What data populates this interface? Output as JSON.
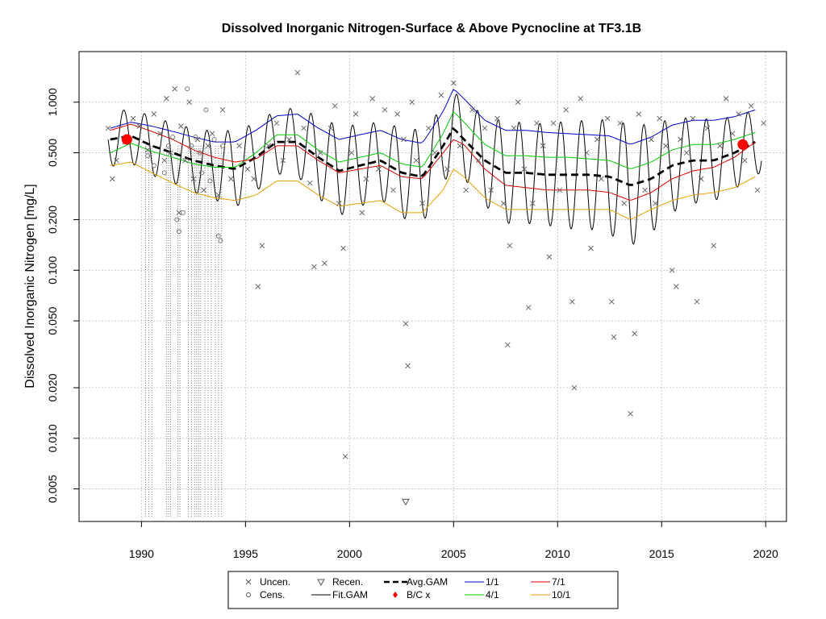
{
  "chart_data": {
    "type": "scatter",
    "title": "Dissolved Inorganic Nitrogen-Surface & Above Pycnocline at TF3.1B",
    "xlabel": "",
    "ylabel": "Dissolved Inorganic Nitrogen [mg/L]",
    "x_scale": "linear",
    "y_scale": "log",
    "xlim": [
      1987.0,
      2021.0
    ],
    "ylim": [
      0.0032,
      2.0
    ],
    "grid": true,
    "x_ticks": [
      {
        "value": 1990,
        "label": "1990"
      },
      {
        "value": 1995,
        "label": "1995"
      },
      {
        "value": 2000,
        "label": "2000"
      },
      {
        "value": 2005,
        "label": "2005"
      },
      {
        "value": 2010,
        "label": "2010"
      },
      {
        "value": 2015,
        "label": "2015"
      },
      {
        "value": 2020,
        "label": "2020"
      }
    ],
    "y_ticks": [
      {
        "value": 0.005,
        "label": "0.005"
      },
      {
        "value": 0.01,
        "label": "0.010"
      },
      {
        "value": 0.02,
        "label": "0.020"
      },
      {
        "value": 0.05,
        "label": "0.050"
      },
      {
        "value": 0.1,
        "label": "0.100"
      },
      {
        "value": 0.2,
        "label": "0.200"
      },
      {
        "value": 0.5,
        "label": "0.500"
      },
      {
        "value": 1.0,
        "label": "1.000"
      }
    ],
    "legend": [
      {
        "label": "Uncen.",
        "symbol": "x",
        "color": "#555555"
      },
      {
        "label": "Recen.",
        "symbol": "triangle-down",
        "color": "#555555"
      },
      {
        "label": "Avg.GAM",
        "symbol": "dashed-line",
        "color": "#000000"
      },
      {
        "label": "1/1",
        "symbol": "line",
        "color": "#0000cc"
      },
      {
        "label": "7/1",
        "symbol": "line",
        "color": "#dd0000"
      },
      {
        "label": "Cens.",
        "symbol": "circle",
        "color": "#555555"
      },
      {
        "label": "Fit.GAM",
        "symbol": "line",
        "color": "#000000"
      },
      {
        "label": "B/C x",
        "symbol": "diamond",
        "color": "#ff0000"
      },
      {
        "label": "4/1",
        "symbol": "line",
        "color": "#00cc00"
      },
      {
        "label": "10/1",
        "symbol": "line",
        "color": "#e69f00"
      }
    ],
    "series": [
      {
        "name": "Avg.GAM",
        "style": "dashed",
        "color": "#000000",
        "x": [
          1988.5,
          1989.5,
          1990.5,
          1991.5,
          1992.5,
          1993.5,
          1994.5,
          1995.5,
          1996.5,
          1997.5,
          1998.5,
          1999.5,
          2000.5,
          2001.5,
          2002.5,
          2003.5,
          2004.5,
          2005.0,
          2005.5,
          2006.5,
          2007.5,
          2008.5,
          2009.5,
          2010.5,
          2011.5,
          2012.5,
          2013.5,
          2014.5,
          2015.5,
          2016.5,
          2017.5,
          2018.5,
          2019.5
        ],
        "y": [
          0.6,
          0.63,
          0.55,
          0.5,
          0.45,
          0.42,
          0.4,
          0.47,
          0.58,
          0.58,
          0.47,
          0.39,
          0.42,
          0.45,
          0.38,
          0.36,
          0.55,
          0.7,
          0.6,
          0.45,
          0.38,
          0.38,
          0.37,
          0.37,
          0.37,
          0.36,
          0.32,
          0.35,
          0.42,
          0.45,
          0.45,
          0.5,
          0.58
        ]
      },
      {
        "name": "1/1",
        "style": "solid",
        "color": "#0000cc",
        "x": [
          1988.5,
          1989.5,
          1990.5,
          1991.5,
          1992.5,
          1993.5,
          1994.5,
          1995.5,
          1996.5,
          1997.5,
          1998.5,
          1999.5,
          2000.5,
          2001.5,
          2002.5,
          2003.5,
          2004.5,
          2005.0,
          2005.5,
          2006.5,
          2007.5,
          2008.5,
          2009.5,
          2010.5,
          2011.5,
          2012.5,
          2013.5,
          2014.5,
          2015.5,
          2016.5,
          2017.5,
          2018.5,
          2019.5
        ],
        "y": [
          0.7,
          0.76,
          0.72,
          0.67,
          0.62,
          0.58,
          0.58,
          0.68,
          0.83,
          0.85,
          0.7,
          0.6,
          0.64,
          0.68,
          0.6,
          0.57,
          0.88,
          1.2,
          1.05,
          0.78,
          0.68,
          0.68,
          0.66,
          0.65,
          0.64,
          0.63,
          0.56,
          0.62,
          0.73,
          0.78,
          0.78,
          0.82,
          0.9
        ]
      },
      {
        "name": "4/1",
        "style": "solid",
        "color": "#00cc00",
        "x": [
          1988.5,
          1989.5,
          1990.5,
          1991.5,
          1992.5,
          1993.5,
          1994.5,
          1995.5,
          1996.5,
          1997.5,
          1998.5,
          1999.5,
          2000.5,
          2001.5,
          2002.5,
          2003.5,
          2004.5,
          2005.0,
          2005.5,
          2006.5,
          2007.5,
          2008.5,
          2009.5,
          2010.5,
          2011.5,
          2012.5,
          2013.5,
          2014.5,
          2015.5,
          2016.5,
          2017.5,
          2018.5,
          2019.5
        ],
        "y": [
          0.5,
          0.57,
          0.51,
          0.47,
          0.43,
          0.41,
          0.41,
          0.5,
          0.64,
          0.64,
          0.52,
          0.44,
          0.47,
          0.5,
          0.43,
          0.41,
          0.65,
          0.88,
          0.76,
          0.56,
          0.48,
          0.48,
          0.47,
          0.47,
          0.46,
          0.45,
          0.4,
          0.44,
          0.52,
          0.56,
          0.56,
          0.6,
          0.66
        ]
      },
      {
        "name": "7/1",
        "style": "solid",
        "color": "#dd0000",
        "x": [
          1988.5,
          1989.5,
          1990.5,
          1991.5,
          1992.5,
          1993.5,
          1994.5,
          1995.5,
          1996.5,
          1997.5,
          1998.5,
          1999.5,
          2000.5,
          2001.5,
          2002.5,
          2003.5,
          2004.5,
          2005.0,
          2005.5,
          2006.5,
          2007.5,
          2008.5,
          2009.5,
          2010.5,
          2011.5,
          2012.5,
          2013.5,
          2014.5,
          2015.5,
          2016.5,
          2017.5,
          2018.5,
          2019.5
        ],
        "y": [
          0.68,
          0.74,
          0.67,
          0.6,
          0.52,
          0.47,
          0.44,
          0.46,
          0.55,
          0.55,
          0.45,
          0.38,
          0.4,
          0.42,
          0.36,
          0.35,
          0.5,
          0.6,
          0.56,
          0.4,
          0.32,
          0.31,
          0.3,
          0.3,
          0.3,
          0.29,
          0.26,
          0.29,
          0.35,
          0.39,
          0.41,
          0.47,
          0.58
        ]
      },
      {
        "name": "10/1",
        "style": "solid",
        "color": "#e69f00",
        "x": [
          1988.5,
          1989.5,
          1990.5,
          1991.5,
          1992.5,
          1993.5,
          1994.5,
          1995.5,
          1996.5,
          1997.5,
          1998.5,
          1999.5,
          2000.5,
          2001.5,
          2002.5,
          2003.5,
          2004.5,
          2005.0,
          2005.5,
          2006.5,
          2007.5,
          2008.5,
          2009.5,
          2010.5,
          2011.5,
          2012.5,
          2013.5,
          2014.5,
          2015.5,
          2016.5,
          2017.5,
          2018.5,
          2019.5
        ],
        "y": [
          0.42,
          0.44,
          0.38,
          0.33,
          0.29,
          0.27,
          0.26,
          0.28,
          0.34,
          0.34,
          0.28,
          0.24,
          0.25,
          0.26,
          0.22,
          0.22,
          0.3,
          0.4,
          0.36,
          0.27,
          0.23,
          0.23,
          0.23,
          0.23,
          0.23,
          0.23,
          0.2,
          0.23,
          0.26,
          0.28,
          0.29,
          0.31,
          0.36
        ]
      },
      {
        "name": "B/C x",
        "style": "points",
        "color": "#ff0000",
        "x": [
          1989.3,
          2018.9
        ],
        "y": [
          0.6,
          0.56
        ]
      },
      {
        "name": "Recen.",
        "style": "points",
        "color": "#555555",
        "x": [
          2002.7
        ],
        "y": [
          0.0042
        ]
      }
    ],
    "fit_gam": {
      "name": "Fit.GAM",
      "color": "#000000",
      "seasonal_amplitude_ratio": [
        1.45,
        1.45,
        1.5,
        1.5,
        1.55,
        1.6,
        1.7,
        1.6,
        1.55,
        1.6,
        1.75,
        1.85,
        1.75,
        1.7,
        1.85,
        1.9,
        1.7,
        1.65,
        1.7,
        1.85,
        2.0,
        2.0,
        2.0,
        2.1,
        2.1,
        2.2,
        2.3,
        2.1,
        1.9,
        1.8,
        1.75,
        1.65,
        1.55
      ]
    },
    "uncensored": [
      [
        1988.4,
        0.7
      ],
      [
        1988.6,
        0.35
      ],
      [
        1988.8,
        0.45
      ],
      [
        1989.2,
        0.58
      ],
      [
        1989.6,
        0.8
      ],
      [
        1989.9,
        0.72
      ],
      [
        1990.3,
        0.52
      ],
      [
        1990.6,
        0.85
      ],
      [
        1990.9,
        0.65
      ],
      [
        1991.1,
        0.45
      ],
      [
        1991.2,
        1.05
      ],
      [
        1991.4,
        0.5
      ],
      [
        1991.6,
        1.2
      ],
      [
        1991.8,
        0.22
      ],
      [
        1991.9,
        0.72
      ],
      [
        1992.1,
        0.45
      ],
      [
        1992.3,
        1.0
      ],
      [
        1992.5,
        0.35
      ],
      [
        1992.7,
        0.6
      ],
      [
        1993.0,
        0.3
      ],
      [
        1993.2,
        0.55
      ],
      [
        1993.4,
        0.65
      ],
      [
        1993.7,
        0.28
      ],
      [
        1993.9,
        0.9
      ],
      [
        1994.3,
        0.35
      ],
      [
        1994.7,
        0.55
      ],
      [
        1995.1,
        0.4
      ],
      [
        1995.4,
        0.35
      ],
      [
        1995.6,
        0.08
      ],
      [
        1995.8,
        0.14
      ],
      [
        1996.1,
        0.55
      ],
      [
        1996.5,
        0.75
      ],
      [
        1996.8,
        0.45
      ],
      [
        1997.1,
        0.6
      ],
      [
        1997.5,
        1.5
      ],
      [
        1997.8,
        0.7
      ],
      [
        1998.1,
        0.33
      ],
      [
        1998.3,
        0.105
      ],
      [
        1998.6,
        0.5
      ],
      [
        1998.8,
        0.11
      ],
      [
        1999.1,
        0.7
      ],
      [
        1999.3,
        0.95
      ],
      [
        1999.5,
        0.25
      ],
      [
        1999.7,
        0.135
      ],
      [
        1999.8,
        0.0078
      ],
      [
        2000.1,
        0.5
      ],
      [
        2000.3,
        0.85
      ],
      [
        2000.6,
        0.22
      ],
      [
        2000.8,
        0.35
      ],
      [
        2001.1,
        1.05
      ],
      [
        2001.4,
        0.4
      ],
      [
        2001.7,
        0.9
      ],
      [
        2002.1,
        0.3
      ],
      [
        2002.3,
        0.85
      ],
      [
        2002.6,
        0.6
      ],
      [
        2002.7,
        0.048
      ],
      [
        2002.8,
        0.027
      ],
      [
        2003.0,
        1.0
      ],
      [
        2003.2,
        0.45
      ],
      [
        2003.5,
        0.25
      ],
      [
        2003.8,
        0.7
      ],
      [
        2004.1,
        0.5
      ],
      [
        2004.4,
        1.1
      ],
      [
        2004.7,
        0.4
      ],
      [
        2005.0,
        1.3
      ],
      [
        2005.3,
        0.55
      ],
      [
        2005.6,
        0.3
      ],
      [
        2005.9,
        0.9
      ],
      [
        2006.2,
        0.45
      ],
      [
        2006.5,
        0.7
      ],
      [
        2006.8,
        0.3
      ],
      [
        2007.1,
        0.8
      ],
      [
        2007.4,
        0.25
      ],
      [
        2007.6,
        0.036
      ],
      [
        2007.7,
        0.14
      ],
      [
        2007.9,
        0.7
      ],
      [
        2008.1,
        1.0
      ],
      [
        2008.4,
        0.4
      ],
      [
        2008.6,
        0.06
      ],
      [
        2008.8,
        0.25
      ],
      [
        2009.0,
        0.75
      ],
      [
        2009.3,
        0.55
      ],
      [
        2009.6,
        0.12
      ],
      [
        2009.8,
        0.75
      ],
      [
        2010.1,
        0.3
      ],
      [
        2010.4,
        0.9
      ],
      [
        2010.7,
        0.065
      ],
      [
        2010.8,
        0.02
      ],
      [
        2011.1,
        1.05
      ],
      [
        2011.4,
        0.5
      ],
      [
        2011.6,
        0.135
      ],
      [
        2011.9,
        0.6
      ],
      [
        2012.1,
        0.35
      ],
      [
        2012.4,
        0.8
      ],
      [
        2012.6,
        0.065
      ],
      [
        2012.7,
        0.04
      ],
      [
        2013.0,
        0.75
      ],
      [
        2013.2,
        0.25
      ],
      [
        2013.5,
        0.014
      ],
      [
        2013.7,
        0.042
      ],
      [
        2013.9,
        0.85
      ],
      [
        2014.2,
        0.3
      ],
      [
        2014.5,
        0.6
      ],
      [
        2014.7,
        0.25
      ],
      [
        2014.9,
        0.8
      ],
      [
        2015.2,
        0.55
      ],
      [
        2015.5,
        0.1
      ],
      [
        2015.7,
        0.08
      ],
      [
        2015.9,
        0.6
      ],
      [
        2016.2,
        0.5
      ],
      [
        2016.5,
        0.8
      ],
      [
        2016.7,
        0.065
      ],
      [
        2016.9,
        0.35
      ],
      [
        2017.2,
        0.7
      ],
      [
        2017.5,
        0.14
      ],
      [
        2017.8,
        0.55
      ],
      [
        2018.1,
        1.05
      ],
      [
        2018.4,
        0.65
      ],
      [
        2018.7,
        0.85
      ],
      [
        2019.0,
        0.45
      ],
      [
        2019.3,
        0.95
      ],
      [
        2019.6,
        0.3
      ],
      [
        2019.9,
        0.75
      ]
    ],
    "censored": [
      [
        1990.3,
        0.48
      ],
      [
        1990.6,
        0.42
      ],
      [
        1991.1,
        0.38
      ],
      [
        1991.3,
        0.55
      ],
      [
        1991.5,
        0.62
      ],
      [
        1991.7,
        0.2
      ],
      [
        1991.8,
        0.17
      ],
      [
        1992.0,
        0.22
      ],
      [
        1992.2,
        1.2
      ],
      [
        1992.4,
        0.55
      ],
      [
        1992.6,
        0.62
      ],
      [
        1992.8,
        0.5
      ],
      [
        1992.9,
        0.38
      ],
      [
        1993.1,
        0.9
      ],
      [
        1993.3,
        0.34
      ],
      [
        1993.5,
        0.6
      ],
      [
        1993.7,
        0.16
      ],
      [
        1993.8,
        0.15
      ],
      [
        1993.9,
        0.55
      ]
    ],
    "censored_interval_years": [
      1990.2,
      1990.35,
      1990.5,
      1991.2,
      1991.3,
      1991.4,
      1991.75,
      1991.85,
      1992.25,
      1992.4,
      1992.55,
      1992.65,
      1992.75,
      1992.85,
      1993.05,
      1993.2,
      1993.35,
      1993.55,
      1993.7,
      1993.85
    ]
  }
}
